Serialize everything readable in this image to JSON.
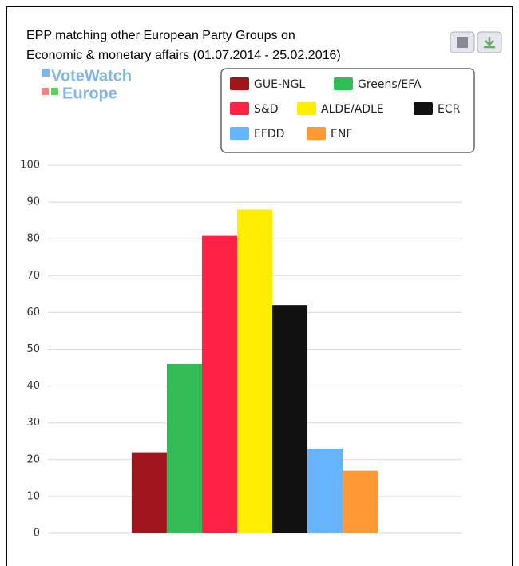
{
  "chart_data": {
    "type": "bar",
    "title": [
      "EPP matching other European Party Groups on",
      "Economic & monetary affairs (01.07.2014 - 25.02.2016)"
    ],
    "logo": [
      "VoteWatch",
      "Europe"
    ],
    "categories": [
      null
    ],
    "series": [
      {
        "name": "GUE-NGL",
        "color": "#a0141c",
        "values": [
          22
        ]
      },
      {
        "name": "Greens/EFA",
        "color": "#33bb55",
        "values": [
          46
        ]
      },
      {
        "name": "S&D",
        "color": "#ff2244",
        "values": [
          81
        ]
      },
      {
        "name": "ALDE/ADLE",
        "color": "#ffee00",
        "values": [
          88
        ]
      },
      {
        "name": "ECR",
        "color": "#111111",
        "values": [
          62
        ]
      },
      {
        "name": "EFDD",
        "color": "#66b3ff",
        "values": [
          23
        ]
      },
      {
        "name": "ENF",
        "color": "#ff9933",
        "values": [
          17
        ]
      }
    ],
    "ylim": [
      0,
      100
    ],
    "yticks": [
      0,
      10,
      20,
      30,
      40,
      50,
      60,
      70,
      80,
      90,
      100
    ],
    "grid": true,
    "legend": "top-right"
  }
}
